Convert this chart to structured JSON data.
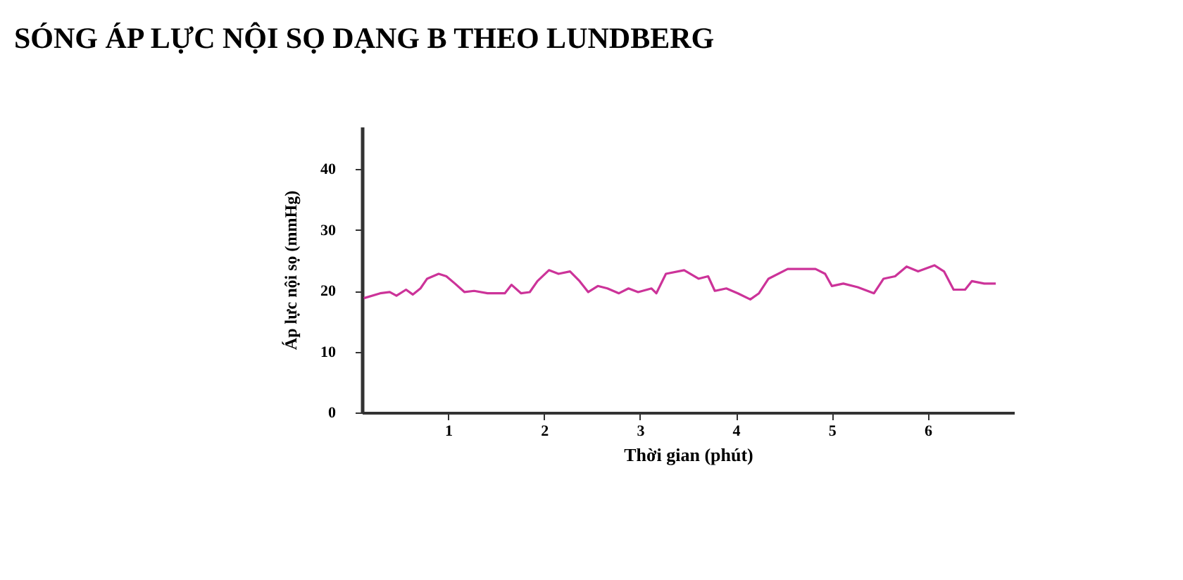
{
  "chart_data": {
    "type": "line",
    "title": "SÓNG ÁP LỰC NỘI SỌ DẠNG B THEO LUNDBERG",
    "xlabel": "Thời gian (phút)",
    "ylabel": "Áp lực nội sọ (mmHg)",
    "xlim": [
      0.1,
      6.9
    ],
    "ylim": [
      0,
      47
    ],
    "xticks": [
      1,
      2,
      3,
      4,
      5,
      6
    ],
    "yticks": [
      0,
      10,
      20,
      30,
      40
    ],
    "grid": false,
    "marker": "none",
    "line_style": "solid",
    "series": [
      {
        "color": "#cc3399",
        "x": [
          0.12,
          0.29,
          0.39,
          0.46,
          0.56,
          0.63,
          0.71,
          0.78,
          0.9,
          0.98,
          1.07,
          1.17,
          1.27,
          1.41,
          1.59,
          1.66,
          1.76,
          1.85,
          1.93,
          2.05,
          2.15,
          2.27,
          2.37,
          2.46,
          2.56,
          2.66,
          2.78,
          2.88,
          2.98,
          3.12,
          3.17,
          3.27,
          3.46,
          3.61,
          3.71,
          3.78,
          3.9,
          4.02,
          4.15,
          4.24,
          4.34,
          4.54,
          4.83,
          4.93,
          5.0,
          5.12,
          5.27,
          5.44,
          5.54,
          5.66,
          5.78,
          5.9,
          6.07,
          6.17,
          6.27,
          6.39,
          6.46,
          6.59,
          6.71
        ],
        "values": [
          18.8,
          19.6,
          19.8,
          19.2,
          20.2,
          19.4,
          20.4,
          22,
          22.8,
          22.4,
          21.2,
          19.8,
          20,
          19.6,
          19.6,
          21,
          19.6,
          19.8,
          21.6,
          23.4,
          22.8,
          23.2,
          21.6,
          19.8,
          20.8,
          20.4,
          19.6,
          20.4,
          19.8,
          20.4,
          19.6,
          22.8,
          23.4,
          22,
          22.4,
          20,
          20.4,
          19.6,
          18.6,
          19.6,
          22,
          23.6,
          23.6,
          22.8,
          20.8,
          21.2,
          20.6,
          19.6,
          22,
          22.4,
          24,
          23.2,
          24.2,
          23.2,
          20.2,
          20.2,
          21.6,
          21.2,
          21.2
        ]
      }
    ]
  }
}
